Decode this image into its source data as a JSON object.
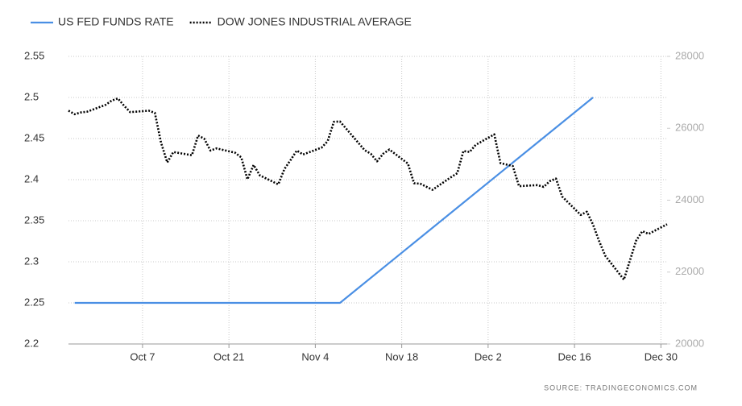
{
  "chart_data": {
    "type": "line",
    "source": "SOURCE: TRADINGECONOMICS.COM",
    "xlim": [
      "Sep 25",
      "Dec 31"
    ],
    "xticks": [
      "Oct 7",
      "Oct 21",
      "Nov 4",
      "Nov 18",
      "Dec 2",
      "Dec 16",
      "Dec 30"
    ],
    "ylim": [
      2.2,
      2.55
    ],
    "yticks": [
      2.2,
      2.25,
      2.3,
      2.35,
      2.4,
      2.45,
      2.5,
      2.55
    ],
    "y2lim": [
      20000,
      28000
    ],
    "y2ticks": [
      20000,
      22000,
      24000,
      26000,
      28000
    ],
    "grid": true,
    "legend": "top-left",
    "series": [
      {
        "name": "US FED FUNDS RATE",
        "color": "#4a8fe4",
        "style": "solid",
        "x": [
          "Sep 26",
          "Nov 8",
          "Dec 19"
        ],
        "values": [
          2.25,
          2.25,
          2.5
        ]
      },
      {
        "name": "DOW JONES INDUSTRIAL AVERAGE",
        "color": "#000000",
        "style": "dotted",
        "axis": "y2",
        "x": [
          "Sep 25",
          "Sep 26",
          "Sep 27",
          "Sep 28",
          "Oct 1",
          "Oct 2",
          "Oct 3",
          "Oct 4",
          "Oct 5",
          "Oct 8",
          "Oct 9",
          "Oct 10",
          "Oct 11",
          "Oct 12",
          "Oct 15",
          "Oct 16",
          "Oct 17",
          "Oct 18",
          "Oct 19",
          "Oct 22",
          "Oct 23",
          "Oct 24",
          "Oct 25",
          "Oct 26",
          "Oct 29",
          "Oct 30",
          "Oct 31",
          "Nov 1",
          "Nov 2",
          "Nov 5",
          "Nov 6",
          "Nov 7",
          "Nov 8",
          "Nov 9",
          "Nov 12",
          "Nov 13",
          "Nov 14",
          "Nov 15",
          "Nov 16",
          "Nov 19",
          "Nov 20",
          "Nov 21",
          "Nov 23",
          "Nov 26",
          "Nov 27",
          "Nov 28",
          "Nov 29",
          "Nov 30",
          "Dec 3",
          "Dec 4",
          "Dec 6",
          "Dec 7",
          "Dec 10",
          "Dec 11",
          "Dec 12",
          "Dec 13",
          "Dec 14",
          "Dec 17",
          "Dec 18",
          "Dec 19",
          "Dec 20",
          "Dec 21",
          "Dec 24",
          "Dec 26",
          "Dec 27",
          "Dec 28",
          "Dec 31"
        ],
        "values": [
          26490,
          26390,
          26440,
          26460,
          26650,
          26770,
          26830,
          26630,
          26450,
          26490,
          26430,
          25600,
          25050,
          25340,
          25250,
          25800,
          25710,
          25380,
          25440,
          25320,
          25190,
          24580,
          24980,
          24690,
          24440,
          24870,
          25120,
          25380,
          25270,
          25460,
          25640,
          26180,
          26190,
          25990,
          25390,
          25290,
          25080,
          25290,
          25410,
          25020,
          24470,
          24460,
          24290,
          24640,
          24750,
          25370,
          25340,
          25540,
          25830,
          25030,
          24950,
          24390,
          24420,
          24370,
          24530,
          24600,
          24100,
          23590,
          23680,
          23320,
          22860,
          22450,
          21790,
          22880,
          23140,
          23060,
          23330
        ]
      }
    ]
  }
}
